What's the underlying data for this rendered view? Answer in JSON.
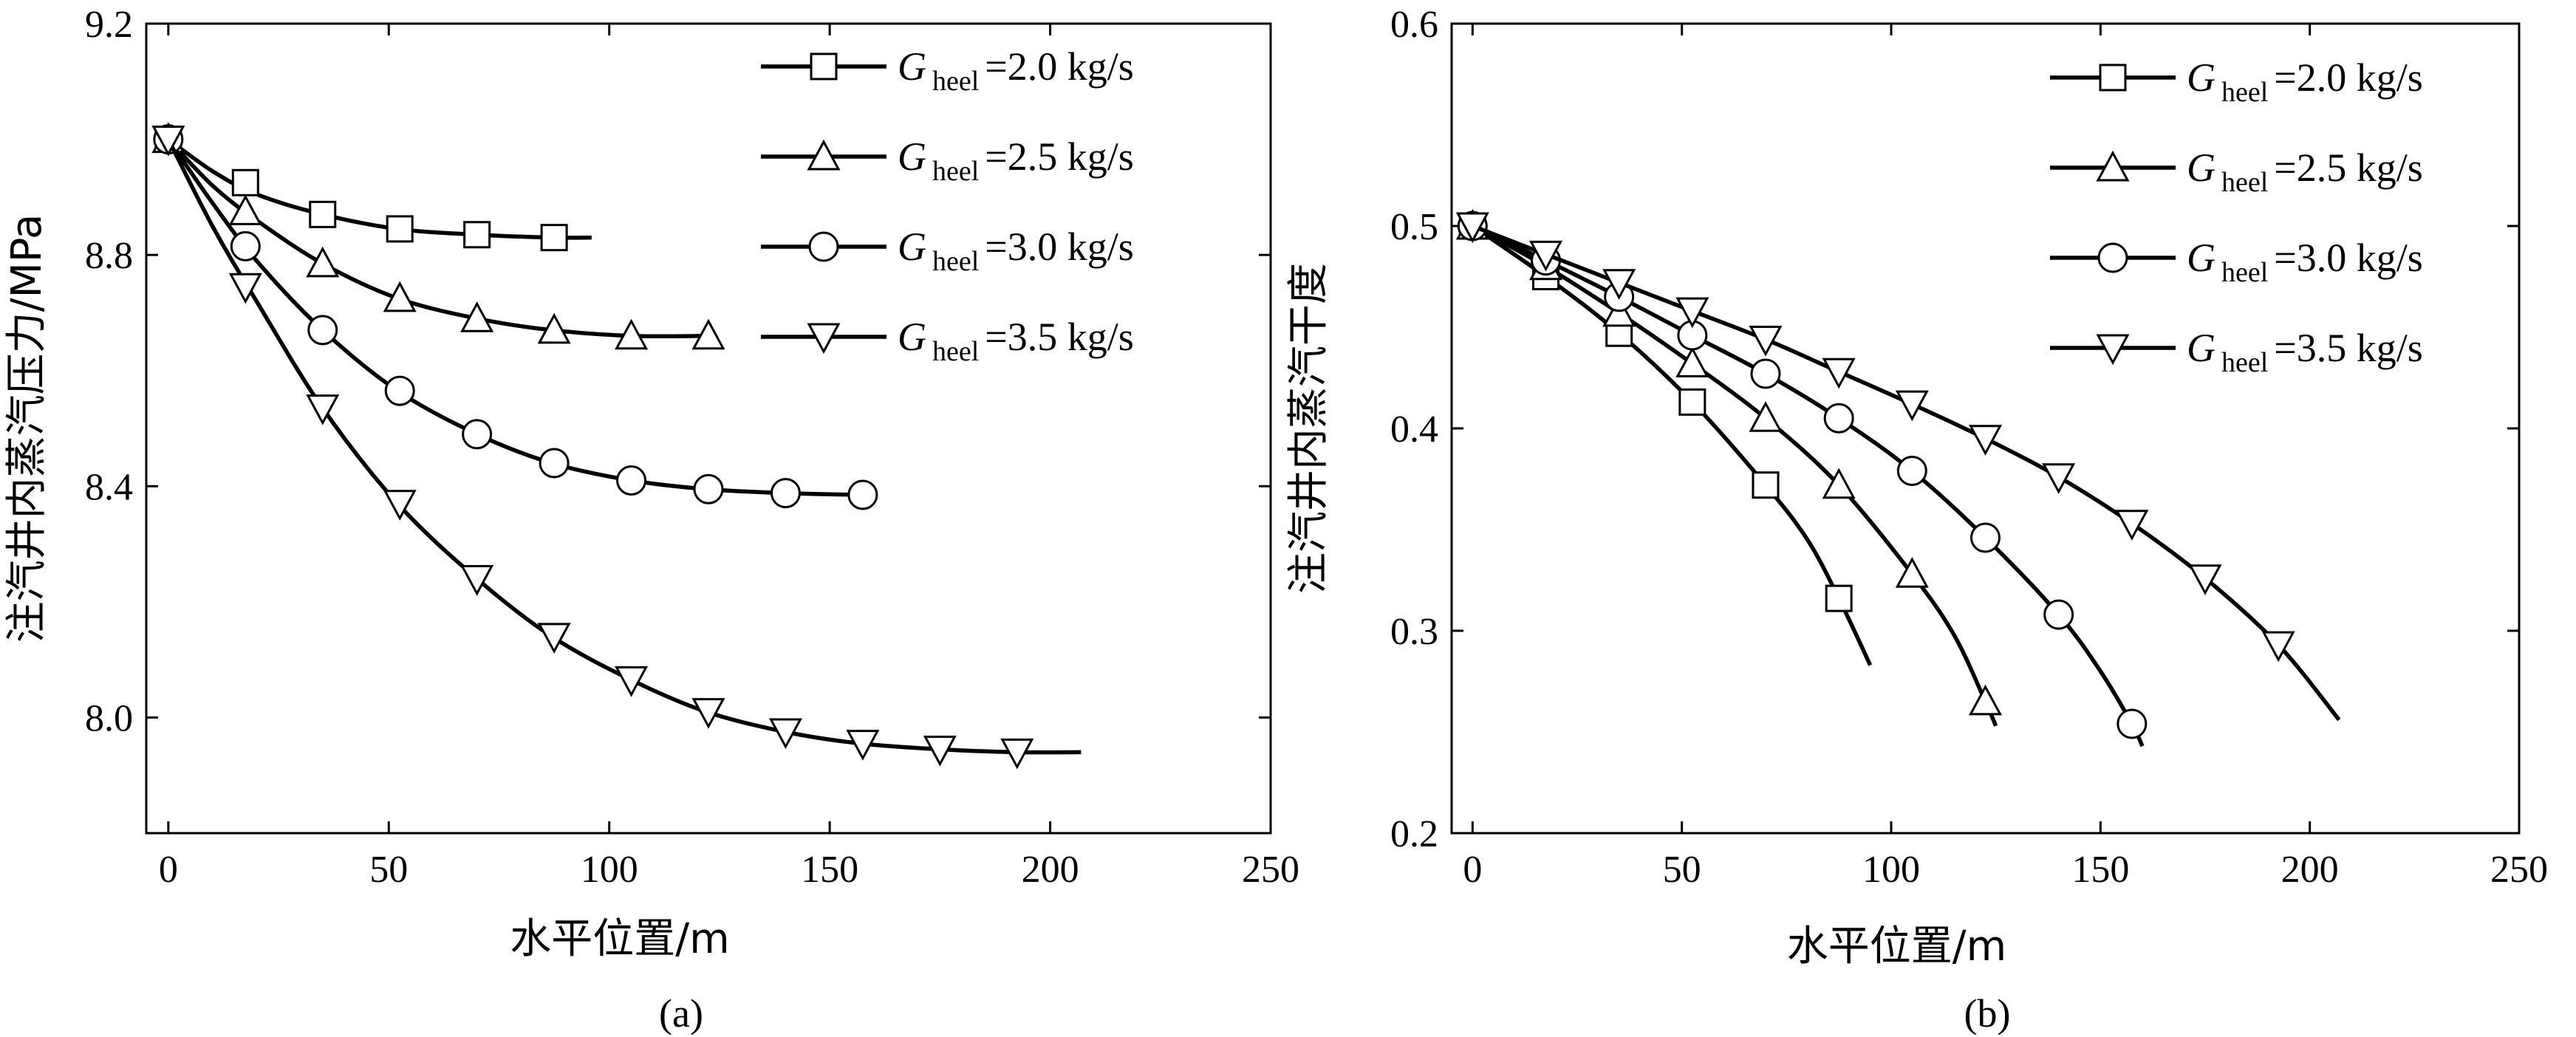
{
  "chart_data": [
    {
      "panel": "(a)",
      "type": "line",
      "xlabel": "水平位置/m",
      "ylabel": "注汽井内蒸汽压力/MPa",
      "xlim": [
        -5,
        250
      ],
      "ylim": [
        7.8,
        9.2
      ],
      "xticks": [
        "0",
        "50",
        "100",
        "150",
        "200",
        "250"
      ],
      "yticks": [
        "8.0",
        "8.4",
        "8.8",
        "9.2"
      ],
      "legend_position": "top-right",
      "series": [
        {
          "symbol": "G",
          "subscript": "heel",
          "value_text": "=2.0 kg/s",
          "marker": "square",
          "curve_x": [
            0,
            10,
            20,
            35,
            52,
            70,
            87,
            96
          ],
          "curve_y": [
            9.0,
            8.945,
            8.905,
            8.87,
            8.845,
            8.835,
            8.83,
            8.83
          ],
          "markers_x": [
            0,
            17.5,
            35,
            52.5,
            70,
            87.5
          ],
          "markers_y": [
            9.0,
            8.925,
            8.87,
            8.845,
            8.835,
            8.83
          ]
        },
        {
          "symbol": "G",
          "subscript": "heel",
          "value_text": "=2.5 kg/s",
          "marker": "triangle-up",
          "curve_x": [
            0,
            10,
            20,
            35,
            52,
            70,
            87,
            105,
            122
          ],
          "curve_y": [
            9.0,
            8.92,
            8.86,
            8.785,
            8.725,
            8.69,
            8.67,
            8.66,
            8.66
          ],
          "markers_x": [
            0,
            17.5,
            35,
            52.5,
            70,
            87.5,
            105,
            122.5
          ],
          "markers_y": [
            9.0,
            8.875,
            8.785,
            8.725,
            8.69,
            8.67,
            8.66,
            8.66
          ]
        },
        {
          "symbol": "G",
          "subscript": "heel",
          "value_text": "=3.0 kg/s",
          "marker": "circle",
          "curve_x": [
            0,
            10,
            20,
            35,
            52,
            70,
            87,
            105,
            122,
            140,
            157
          ],
          "curve_y": [
            9.0,
            8.89,
            8.79,
            8.67,
            8.565,
            8.49,
            8.44,
            8.41,
            8.395,
            8.388,
            8.385
          ],
          "markers_x": [
            0,
            17.5,
            35,
            52.5,
            70,
            87.5,
            105,
            122.5,
            140,
            157.5
          ],
          "markers_y": [
            9.0,
            8.815,
            8.67,
            8.565,
            8.49,
            8.44,
            8.41,
            8.395,
            8.388,
            8.385
          ]
        },
        {
          "symbol": "G",
          "subscript": "heel",
          "value_text": "=3.5 kg/s",
          "marker": "triangle-down",
          "curve_x": [
            0,
            10,
            20,
            35,
            52,
            70,
            87,
            105,
            122,
            140,
            157,
            175,
            192,
            207
          ],
          "curve_y": [
            9.0,
            8.85,
            8.72,
            8.535,
            8.37,
            8.24,
            8.14,
            8.065,
            8.01,
            7.975,
            7.955,
            7.945,
            7.94,
            7.94
          ],
          "markers_x": [
            0,
            17.5,
            35,
            52.5,
            70,
            87.5,
            105,
            122.5,
            140,
            157.5,
            175,
            192.5
          ],
          "markers_y": [
            9.0,
            8.745,
            8.535,
            8.37,
            8.24,
            8.14,
            8.065,
            8.01,
            7.975,
            7.955,
            7.945,
            7.94
          ]
        }
      ]
    },
    {
      "panel": "(b)",
      "type": "line",
      "xlabel": "水平位置/m",
      "ylabel": "注汽井内蒸汽干度",
      "xlim": [
        -5,
        250
      ],
      "ylim": [
        0.2,
        0.6
      ],
      "xticks": [
        "0",
        "50",
        "100",
        "150",
        "200",
        "250"
      ],
      "yticks": [
        "0.2",
        "0.3",
        "0.4",
        "0.5",
        "0.6"
      ],
      "legend_position": "top-right",
      "series": [
        {
          "symbol": "G",
          "subscript": "heel",
          "value_text": "=2.0 kg/s",
          "marker": "square",
          "curve_x": [
            0,
            17.5,
            35,
            52.5,
            70,
            80,
            87.5,
            95
          ],
          "curve_y": [
            0.5,
            0.475,
            0.447,
            0.413,
            0.372,
            0.345,
            0.316,
            0.283
          ],
          "markers_x": [
            0,
            17.5,
            35,
            52.5,
            70,
            87.5
          ],
          "markers_y": [
            0.5,
            0.475,
            0.447,
            0.413,
            0.372,
            0.316
          ]
        },
        {
          "symbol": "G",
          "subscript": "heel",
          "value_text": "=2.5 kg/s",
          "marker": "triangle-up",
          "curve_x": [
            0,
            17.5,
            35,
            52.5,
            70,
            87.5,
            105,
            115,
            122.5,
            125
          ],
          "curve_y": [
            0.5,
            0.48,
            0.457,
            0.432,
            0.405,
            0.372,
            0.328,
            0.298,
            0.265,
            0.253
          ],
          "markers_x": [
            0,
            17.5,
            35,
            52.5,
            70,
            87.5,
            105,
            122.5
          ],
          "markers_y": [
            0.5,
            0.48,
            0.457,
            0.432,
            0.405,
            0.372,
            0.328,
            0.265
          ]
        },
        {
          "symbol": "G",
          "subscript": "heel",
          "value_text": "=3.0 kg/s",
          "marker": "circle",
          "curve_x": [
            0,
            17.5,
            35,
            52.5,
            70,
            87.5,
            105,
            122.5,
            140,
            150,
            157.5,
            160
          ],
          "curve_y": [
            0.5,
            0.483,
            0.465,
            0.446,
            0.427,
            0.405,
            0.379,
            0.346,
            0.308,
            0.28,
            0.254,
            0.243
          ],
          "markers_x": [
            0,
            17.5,
            35,
            52.5,
            70,
            87.5,
            105,
            122.5,
            140,
            157.5
          ],
          "markers_y": [
            0.5,
            0.483,
            0.465,
            0.446,
            0.427,
            0.405,
            0.379,
            0.346,
            0.308,
            0.254
          ]
        },
        {
          "symbol": "G",
          "subscript": "heel",
          "value_text": "=3.5 kg/s",
          "marker": "triangle-down",
          "curve_x": [
            0,
            17.5,
            35,
            52.5,
            70,
            87.5,
            105,
            122.5,
            140,
            157.5,
            175,
            192.5,
            207
          ],
          "curve_y": [
            0.5,
            0.486,
            0.472,
            0.458,
            0.444,
            0.428,
            0.412,
            0.395,
            0.376,
            0.353,
            0.326,
            0.293,
            0.256
          ],
          "markers_x": [
            0,
            17.5,
            35,
            52.5,
            70,
            87.5,
            105,
            122.5,
            140,
            157.5,
            175,
            192.5
          ],
          "markers_y": [
            0.5,
            0.486,
            0.472,
            0.458,
            0.444,
            0.428,
            0.412,
            0.395,
            0.376,
            0.353,
            0.326,
            0.293
          ]
        }
      ]
    }
  ]
}
